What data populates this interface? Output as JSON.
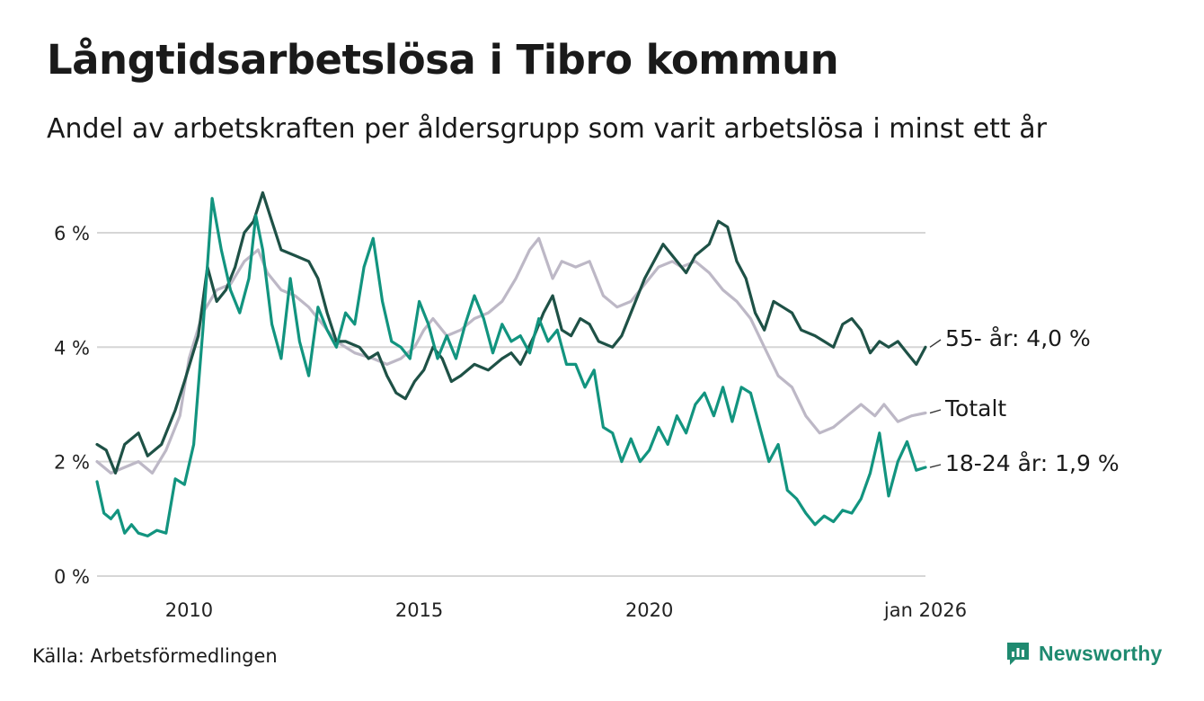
{
  "header": {
    "title": "Långtidsarbetslösa i Tibro kommun",
    "subtitle": "Andel av arbetskraften per åldersgrupp som varit arbetslösa i minst ett år"
  },
  "footer": {
    "source": "Källa: Arbetsförmedlingen",
    "brand": "Newsworthy",
    "brand_icon": "newsworthy-logo-icon",
    "brand_color": "#1f8a70"
  },
  "chart_data": {
    "type": "line",
    "title": "Långtidsarbetslösa i Tibro kommun",
    "xlabel": "",
    "ylabel": "",
    "xlim": [
      2008.0,
      2026.0
    ],
    "ylim": [
      0,
      6.8
    ],
    "yticks": [
      0,
      2,
      4,
      6
    ],
    "ytick_labels": [
      "0 %",
      "2 %",
      "4 %",
      "6 %"
    ],
    "xticks": [
      2010,
      2015,
      2020,
      2026
    ],
    "xtick_labels": [
      "2010",
      "2015",
      "2020",
      "jan 2026"
    ],
    "grid": "horizontal",
    "series": [
      {
        "name": "Totalt",
        "label": "Totalt",
        "color": "#bdb8c6",
        "points": [
          [
            2008.0,
            2.0
          ],
          [
            2008.3,
            1.8
          ],
          [
            2008.6,
            1.9
          ],
          [
            2008.9,
            2.0
          ],
          [
            2009.2,
            1.8
          ],
          [
            2009.5,
            2.2
          ],
          [
            2009.8,
            2.8
          ],
          [
            2010.0,
            3.8
          ],
          [
            2010.3,
            4.6
          ],
          [
            2010.6,
            5.0
          ],
          [
            2010.9,
            5.1
          ],
          [
            2011.2,
            5.5
          ],
          [
            2011.5,
            5.7
          ],
          [
            2011.7,
            5.3
          ],
          [
            2012.0,
            5.0
          ],
          [
            2012.3,
            4.9
          ],
          [
            2012.6,
            4.7
          ],
          [
            2012.9,
            4.4
          ],
          [
            2013.2,
            4.1
          ],
          [
            2013.6,
            3.9
          ],
          [
            2014.0,
            3.8
          ],
          [
            2014.3,
            3.7
          ],
          [
            2014.6,
            3.8
          ],
          [
            2014.9,
            4.0
          ],
          [
            2015.1,
            4.3
          ],
          [
            2015.3,
            4.5
          ],
          [
            2015.6,
            4.2
          ],
          [
            2015.9,
            4.3
          ],
          [
            2016.2,
            4.5
          ],
          [
            2016.5,
            4.6
          ],
          [
            2016.8,
            4.8
          ],
          [
            2017.1,
            5.2
          ],
          [
            2017.4,
            5.7
          ],
          [
            2017.6,
            5.9
          ],
          [
            2017.9,
            5.2
          ],
          [
            2018.1,
            5.5
          ],
          [
            2018.4,
            5.4
          ],
          [
            2018.7,
            5.5
          ],
          [
            2019.0,
            4.9
          ],
          [
            2019.3,
            4.7
          ],
          [
            2019.6,
            4.8
          ],
          [
            2019.9,
            5.1
          ],
          [
            2020.2,
            5.4
          ],
          [
            2020.5,
            5.5
          ],
          [
            2020.7,
            5.4
          ],
          [
            2021.0,
            5.5
          ],
          [
            2021.3,
            5.3
          ],
          [
            2021.6,
            5.0
          ],
          [
            2021.9,
            4.8
          ],
          [
            2022.2,
            4.5
          ],
          [
            2022.5,
            4.0
          ],
          [
            2022.8,
            3.5
          ],
          [
            2023.1,
            3.3
          ],
          [
            2023.4,
            2.8
          ],
          [
            2023.7,
            2.5
          ],
          [
            2024.0,
            2.6
          ],
          [
            2024.3,
            2.8
          ],
          [
            2024.6,
            3.0
          ],
          [
            2024.9,
            2.8
          ],
          [
            2025.1,
            3.0
          ],
          [
            2025.4,
            2.7
          ],
          [
            2025.7,
            2.8
          ],
          [
            2026.0,
            2.85
          ]
        ]
      },
      {
        "name": "55- år",
        "label": "55- år: 4,0 %",
        "color": "#1e5146",
        "points": [
          [
            2008.0,
            2.3
          ],
          [
            2008.2,
            2.2
          ],
          [
            2008.4,
            1.8
          ],
          [
            2008.6,
            2.3
          ],
          [
            2008.9,
            2.5
          ],
          [
            2009.1,
            2.1
          ],
          [
            2009.4,
            2.3
          ],
          [
            2009.7,
            2.9
          ],
          [
            2009.9,
            3.4
          ],
          [
            2010.2,
            4.2
          ],
          [
            2010.4,
            5.4
          ],
          [
            2010.6,
            4.8
          ],
          [
            2010.8,
            5.0
          ],
          [
            2011.0,
            5.4
          ],
          [
            2011.2,
            6.0
          ],
          [
            2011.4,
            6.2
          ],
          [
            2011.6,
            6.7
          ],
          [
            2011.8,
            6.2
          ],
          [
            2012.0,
            5.7
          ],
          [
            2012.3,
            5.6
          ],
          [
            2012.6,
            5.5
          ],
          [
            2012.8,
            5.2
          ],
          [
            2013.0,
            4.6
          ],
          [
            2013.2,
            4.1
          ],
          [
            2013.4,
            4.1
          ],
          [
            2013.7,
            4.0
          ],
          [
            2013.9,
            3.8
          ],
          [
            2014.1,
            3.9
          ],
          [
            2014.3,
            3.5
          ],
          [
            2014.5,
            3.2
          ],
          [
            2014.7,
            3.1
          ],
          [
            2014.9,
            3.4
          ],
          [
            2015.1,
            3.6
          ],
          [
            2015.3,
            4.0
          ],
          [
            2015.5,
            3.8
          ],
          [
            2015.7,
            3.4
          ],
          [
            2015.9,
            3.5
          ],
          [
            2016.2,
            3.7
          ],
          [
            2016.5,
            3.6
          ],
          [
            2016.8,
            3.8
          ],
          [
            2017.0,
            3.9
          ],
          [
            2017.2,
            3.7
          ],
          [
            2017.5,
            4.2
          ],
          [
            2017.7,
            4.6
          ],
          [
            2017.9,
            4.9
          ],
          [
            2018.1,
            4.3
          ],
          [
            2018.3,
            4.2
          ],
          [
            2018.5,
            4.5
          ],
          [
            2018.7,
            4.4
          ],
          [
            2018.9,
            4.1
          ],
          [
            2019.2,
            4.0
          ],
          [
            2019.4,
            4.2
          ],
          [
            2019.7,
            4.8
          ],
          [
            2019.9,
            5.2
          ],
          [
            2020.1,
            5.5
          ],
          [
            2020.3,
            5.8
          ],
          [
            2020.6,
            5.5
          ],
          [
            2020.8,
            5.3
          ],
          [
            2021.0,
            5.6
          ],
          [
            2021.3,
            5.8
          ],
          [
            2021.5,
            6.2
          ],
          [
            2021.7,
            6.1
          ],
          [
            2021.9,
            5.5
          ],
          [
            2022.1,
            5.2
          ],
          [
            2022.3,
            4.6
          ],
          [
            2022.5,
            4.3
          ],
          [
            2022.7,
            4.8
          ],
          [
            2022.9,
            4.7
          ],
          [
            2023.1,
            4.6
          ],
          [
            2023.3,
            4.3
          ],
          [
            2023.6,
            4.2
          ],
          [
            2023.8,
            4.1
          ],
          [
            2024.0,
            4.0
          ],
          [
            2024.2,
            4.4
          ],
          [
            2024.4,
            4.5
          ],
          [
            2024.6,
            4.3
          ],
          [
            2024.8,
            3.9
          ],
          [
            2025.0,
            4.1
          ],
          [
            2025.2,
            4.0
          ],
          [
            2025.4,
            4.1
          ],
          [
            2025.6,
            3.9
          ],
          [
            2025.8,
            3.7
          ],
          [
            2026.0,
            4.0
          ]
        ]
      },
      {
        "name": "18-24 år",
        "label": "18-24 år: 1,9 %",
        "color": "#12947f",
        "points": [
          [
            2008.0,
            1.65
          ],
          [
            2008.15,
            1.1
          ],
          [
            2008.3,
            1.0
          ],
          [
            2008.45,
            1.15
          ],
          [
            2008.6,
            0.75
          ],
          [
            2008.75,
            0.9
          ],
          [
            2008.9,
            0.75
          ],
          [
            2009.1,
            0.7
          ],
          [
            2009.3,
            0.8
          ],
          [
            2009.5,
            0.75
          ],
          [
            2009.7,
            1.7
          ],
          [
            2009.9,
            1.6
          ],
          [
            2010.1,
            2.3
          ],
          [
            2010.3,
            4.3
          ],
          [
            2010.5,
            6.6
          ],
          [
            2010.7,
            5.7
          ],
          [
            2010.9,
            5.0
          ],
          [
            2011.1,
            4.6
          ],
          [
            2011.3,
            5.2
          ],
          [
            2011.45,
            6.3
          ],
          [
            2011.6,
            5.7
          ],
          [
            2011.8,
            4.4
          ],
          [
            2012.0,
            3.8
          ],
          [
            2012.2,
            5.2
          ],
          [
            2012.4,
            4.1
          ],
          [
            2012.6,
            3.5
          ],
          [
            2012.8,
            4.7
          ],
          [
            2013.0,
            4.3
          ],
          [
            2013.2,
            4.0
          ],
          [
            2013.4,
            4.6
          ],
          [
            2013.6,
            4.4
          ],
          [
            2013.8,
            5.4
          ],
          [
            2014.0,
            5.9
          ],
          [
            2014.2,
            4.8
          ],
          [
            2014.4,
            4.1
          ],
          [
            2014.6,
            4.0
          ],
          [
            2014.8,
            3.8
          ],
          [
            2015.0,
            4.8
          ],
          [
            2015.2,
            4.4
          ],
          [
            2015.4,
            3.8
          ],
          [
            2015.6,
            4.2
          ],
          [
            2015.8,
            3.8
          ],
          [
            2016.0,
            4.4
          ],
          [
            2016.2,
            4.9
          ],
          [
            2016.4,
            4.5
          ],
          [
            2016.6,
            3.9
          ],
          [
            2016.8,
            4.4
          ],
          [
            2017.0,
            4.1
          ],
          [
            2017.2,
            4.2
          ],
          [
            2017.4,
            3.9
          ],
          [
            2017.6,
            4.5
          ],
          [
            2017.8,
            4.1
          ],
          [
            2018.0,
            4.3
          ],
          [
            2018.2,
            3.7
          ],
          [
            2018.4,
            3.7
          ],
          [
            2018.6,
            3.3
          ],
          [
            2018.8,
            3.6
          ],
          [
            2019.0,
            2.6
          ],
          [
            2019.2,
            2.5
          ],
          [
            2019.4,
            2.0
          ],
          [
            2019.6,
            2.4
          ],
          [
            2019.8,
            2.0
          ],
          [
            2020.0,
            2.2
          ],
          [
            2020.2,
            2.6
          ],
          [
            2020.4,
            2.3
          ],
          [
            2020.6,
            2.8
          ],
          [
            2020.8,
            2.5
          ],
          [
            2021.0,
            3.0
          ],
          [
            2021.2,
            3.2
          ],
          [
            2021.4,
            2.8
          ],
          [
            2021.6,
            3.3
          ],
          [
            2021.8,
            2.7
          ],
          [
            2022.0,
            3.3
          ],
          [
            2022.2,
            3.2
          ],
          [
            2022.4,
            2.6
          ],
          [
            2022.6,
            2.0
          ],
          [
            2022.8,
            2.3
          ],
          [
            2023.0,
            1.5
          ],
          [
            2023.2,
            1.35
          ],
          [
            2023.4,
            1.1
          ],
          [
            2023.6,
            0.9
          ],
          [
            2023.8,
            1.05
          ],
          [
            2024.0,
            0.95
          ],
          [
            2024.2,
            1.15
          ],
          [
            2024.4,
            1.1
          ],
          [
            2024.6,
            1.35
          ],
          [
            2024.8,
            1.8
          ],
          [
            2025.0,
            2.5
          ],
          [
            2025.2,
            1.4
          ],
          [
            2025.4,
            2.0
          ],
          [
            2025.6,
            2.35
          ],
          [
            2025.8,
            1.85
          ],
          [
            2026.0,
            1.9
          ]
        ]
      }
    ]
  }
}
